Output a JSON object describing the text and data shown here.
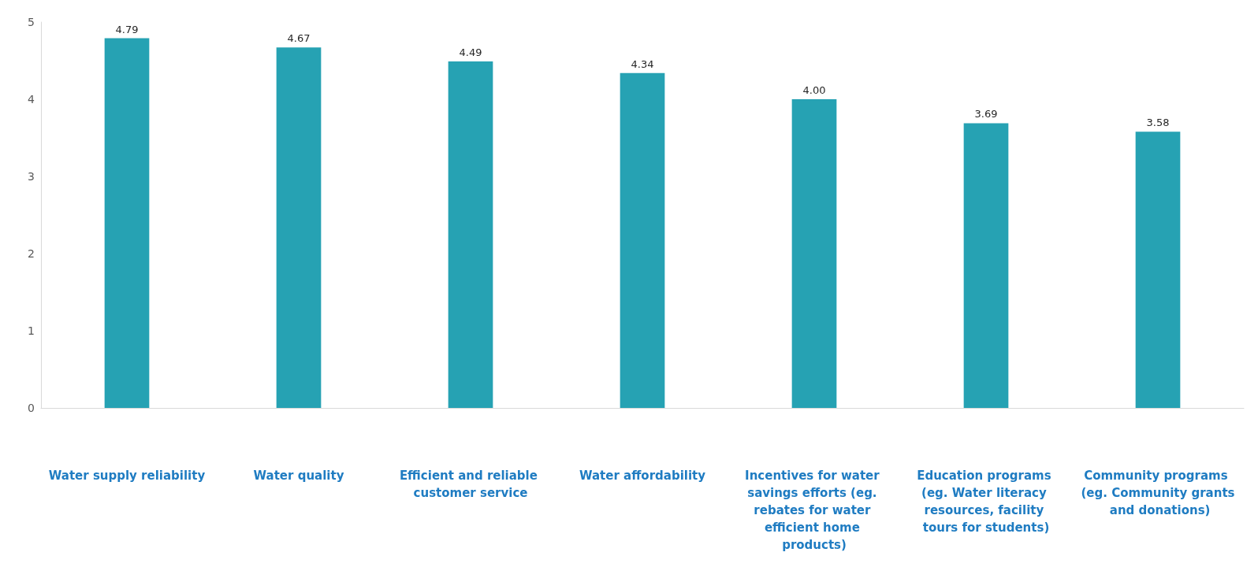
{
  "chart_data": {
    "type": "bar",
    "categories": [
      "Water supply reliability",
      "Water quality",
      "Efficient and reliable customer service",
      "Water affordability",
      "Incentives for water savings efforts (eg. rebates for water efficient home products)",
      "Education programs (eg. Water literacy resources, facility tours for students)",
      "Community programs (eg. Community grants and donations)"
    ],
    "values": [
      4.79,
      4.67,
      4.49,
      4.34,
      4.0,
      3.69,
      3.58
    ],
    "value_labels": [
      "4.79",
      "4.67",
      "4.49",
      "4.34",
      "4.00",
      "3.69",
      "3.58"
    ],
    "color": "#26a2b3",
    "ylim": [
      0,
      5
    ],
    "yticks": [
      0,
      1,
      2,
      3,
      4,
      5
    ],
    "grid": false
  }
}
